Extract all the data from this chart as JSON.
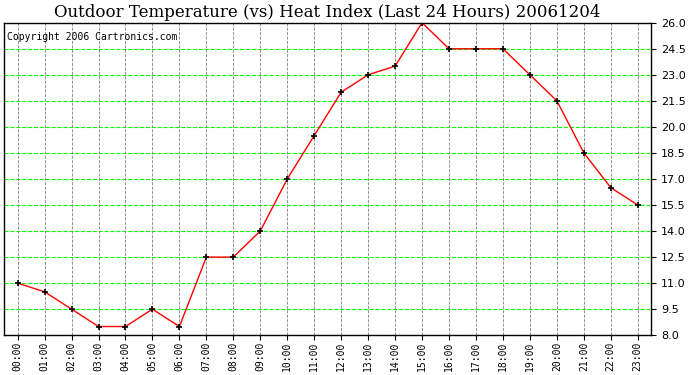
{
  "title": "Outdoor Temperature (vs) Heat Index (Last 24 Hours) 20061204",
  "copyright_text": "Copyright 2006 Cartronics.com",
  "x_labels": [
    "00:00",
    "01:00",
    "02:00",
    "03:00",
    "04:00",
    "05:00",
    "06:00",
    "07:00",
    "08:00",
    "09:00",
    "10:00",
    "11:00",
    "12:00",
    "13:00",
    "14:00",
    "15:00",
    "16:00",
    "17:00",
    "18:00",
    "19:00",
    "20:00",
    "21:00",
    "22:00",
    "23:00"
  ],
  "y_values": [
    11.0,
    10.5,
    9.5,
    8.5,
    8.5,
    9.5,
    8.5,
    12.5,
    12.5,
    14.0,
    17.0,
    19.5,
    22.0,
    23.0,
    23.5,
    26.0,
    24.5,
    24.5,
    24.5,
    23.0,
    21.5,
    18.5,
    16.5,
    15.5
  ],
  "ylim_min": 8.0,
  "ylim_max": 26.0,
  "ytick_step": 1.5,
  "line_color": "#ff0000",
  "marker": "+",
  "marker_color": "#000000",
  "bg_color": "#ffffff",
  "plot_bg_color": "#ffffff",
  "h_grid_color": "#00ff00",
  "v_grid_color": "#808080",
  "grid_style": "--",
  "title_fontsize": 12,
  "copyright_fontsize": 7
}
